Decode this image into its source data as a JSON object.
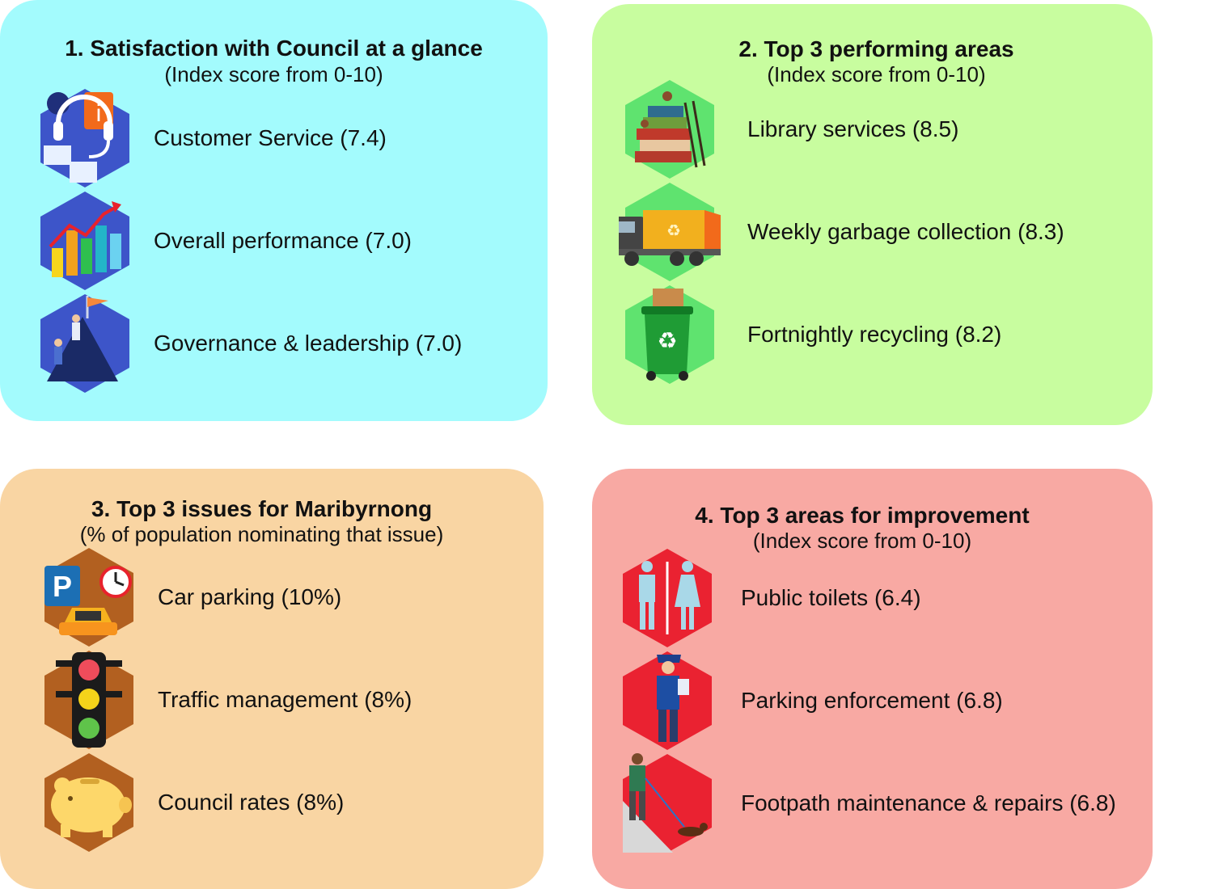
{
  "panels": [
    {
      "id": "satisfaction",
      "title": "1. Satisfaction with Council at a glance",
      "subtitle": "(Index score from 0-10)",
      "color": "#a3fbfd",
      "items": [
        {
          "label": "Customer Service (7.4)",
          "icon": "customer-service-icon"
        },
        {
          "label": "Overall performance (7.0)",
          "icon": "bar-chart-growth-icon"
        },
        {
          "label": "Governance & leadership (7.0)",
          "icon": "mountain-flag-icon"
        }
      ]
    },
    {
      "id": "performing",
      "title": "2. Top 3 performing areas",
      "subtitle": "(Index score from 0-10)",
      "color": "#c8fd9f",
      "items": [
        {
          "label": "Library services (8.5)",
          "icon": "books-library-icon"
        },
        {
          "label": "Weekly garbage collection (8.3)",
          "icon": "garbage-truck-icon"
        },
        {
          "label": "Fortnightly recycling (8.2)",
          "icon": "recycling-bin-icon"
        }
      ]
    },
    {
      "id": "issues",
      "title": "3. Top 3 issues for Maribyrnong",
      "subtitle": "(% of population nominating that issue)",
      "color": "#f9d5a3",
      "items": [
        {
          "label": "Car parking (10%)",
          "icon": "car-parking-icon"
        },
        {
          "label": "Traffic management (8%)",
          "icon": "traffic-light-icon"
        },
        {
          "label": "Council rates (8%)",
          "icon": "piggy-bank-icon"
        }
      ]
    },
    {
      "id": "improvement",
      "title": "4. Top 3 areas for improvement",
      "subtitle": "(Index score from 0-10)",
      "color": "#f8a9a3",
      "items": [
        {
          "label": "Public toilets (6.4)",
          "icon": "public-toilets-icon"
        },
        {
          "label": "Parking enforcement (6.8)",
          "icon": "parking-officer-icon"
        },
        {
          "label": "Footpath maintenance & repairs (6.8)",
          "icon": "dog-walker-footpath-icon"
        }
      ]
    }
  ]
}
